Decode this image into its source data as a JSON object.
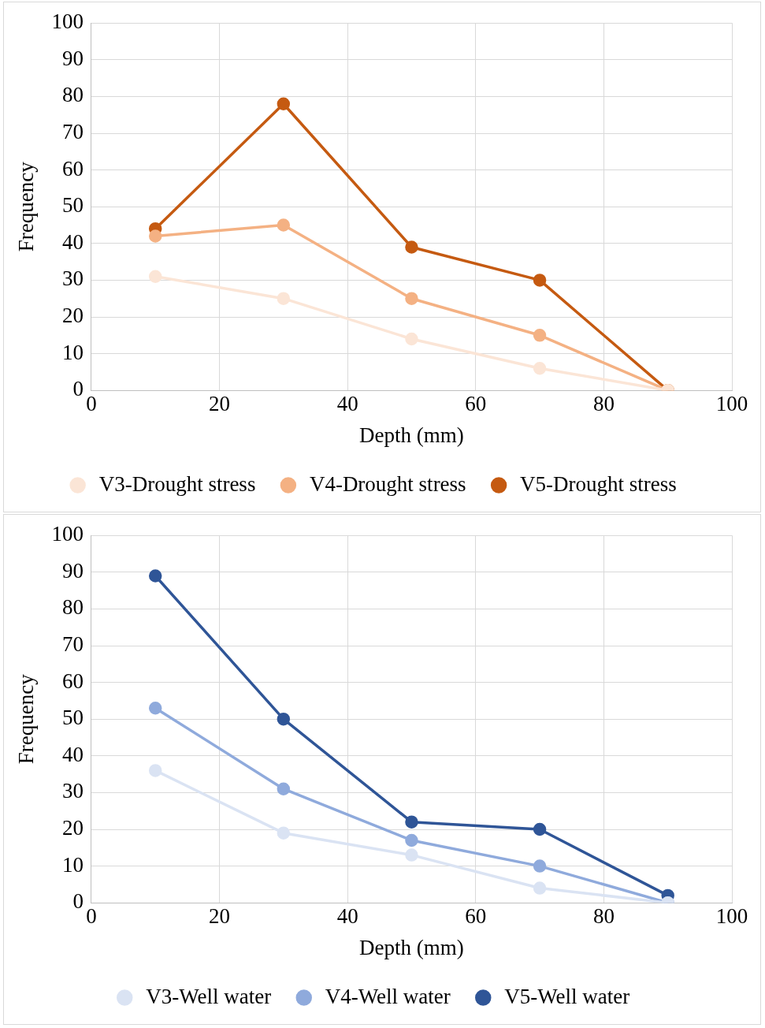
{
  "chart_data": [
    {
      "type": "line",
      "xlabel": "Depth (mm)",
      "ylabel": "Frequency",
      "x": [
        10,
        30,
        50,
        70,
        90
      ],
      "xlim": [
        0,
        100
      ],
      "xticks": [
        0,
        20,
        40,
        60,
        80,
        100
      ],
      "ylim": [
        0,
        100
      ],
      "yticks": [
        0,
        10,
        20,
        30,
        40,
        50,
        60,
        70,
        80,
        90,
        100
      ],
      "grid": true,
      "legend": "bottom",
      "marker": "circle",
      "line_style": "solid",
      "series": [
        {
          "name": "V3-Drought stress",
          "color": "#fbe5d6",
          "values": [
            31,
            25,
            14,
            6,
            0
          ]
        },
        {
          "name": "V4-Drought stress",
          "color": "#f4b183",
          "values": [
            42,
            45,
            25,
            15,
            0
          ]
        },
        {
          "name": "V5-Drought stress",
          "color": "#c55a11",
          "values": [
            44,
            78,
            39,
            30,
            0
          ]
        }
      ]
    },
    {
      "type": "line",
      "xlabel": "Depth (mm)",
      "ylabel": "Frequency",
      "x": [
        10,
        30,
        50,
        70,
        90
      ],
      "xlim": [
        0,
        100
      ],
      "xticks": [
        0,
        20,
        40,
        60,
        80,
        100
      ],
      "ylim": [
        0,
        100
      ],
      "yticks": [
        0,
        10,
        20,
        30,
        40,
        50,
        60,
        70,
        80,
        90,
        100
      ],
      "grid": true,
      "legend": "bottom",
      "marker": "circle",
      "line_style": "solid",
      "series": [
        {
          "name": "V3-Well water",
          "color": "#dae3f3",
          "values": [
            36,
            19,
            13,
            4,
            0
          ]
        },
        {
          "name": "V4-Well water",
          "color": "#8faadc",
          "values": [
            53,
            31,
            17,
            10,
            0
          ]
        },
        {
          "name": "V5-Well water",
          "color": "#2f5597",
          "values": [
            89,
            50,
            22,
            20,
            2
          ]
        }
      ]
    }
  ]
}
